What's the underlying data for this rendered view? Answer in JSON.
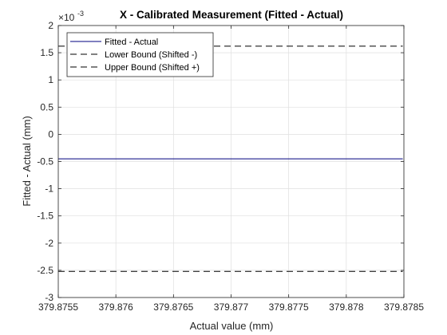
{
  "chart_data": {
    "type": "line",
    "title": "X - Calibrated Measurement (Fitted - Actual)",
    "xlabel": "Actual value (mm)",
    "ylabel": "Fitted - Actual (mm)",
    "y_exponent": "-3",
    "xlim": [
      379.8755,
      379.8785
    ],
    "ylim": [
      -3,
      2
    ],
    "xticks": [
      "379.8755",
      "379.876",
      "379.8765",
      "379.877",
      "379.8775",
      "379.878",
      "379.8785"
    ],
    "yticks": [
      "-3",
      "-2.5",
      "-2",
      "-1.5",
      "-1",
      "-0.5",
      "0",
      "0.5",
      "1",
      "1.5",
      "2"
    ],
    "grid": true,
    "legend_position": "top-left",
    "series": [
      {
        "name": "Fitted - Actual",
        "color": "#00007F",
        "dash": "solid",
        "x": [
          379.8755,
          379.87849
        ],
        "y": [
          -0.45,
          -0.45
        ]
      },
      {
        "name": "Lower Bound (Shifted -)",
        "color": "#000000",
        "dash": "dashed",
        "x": [
          379.8755,
          379.87849
        ],
        "y": [
          -2.52,
          -2.52
        ]
      },
      {
        "name": "Upper Bound (Shifted +)",
        "color": "#000000",
        "dash": "dashed",
        "x": [
          379.8755,
          379.87849
        ],
        "y": [
          1.62,
          1.62
        ]
      }
    ]
  }
}
